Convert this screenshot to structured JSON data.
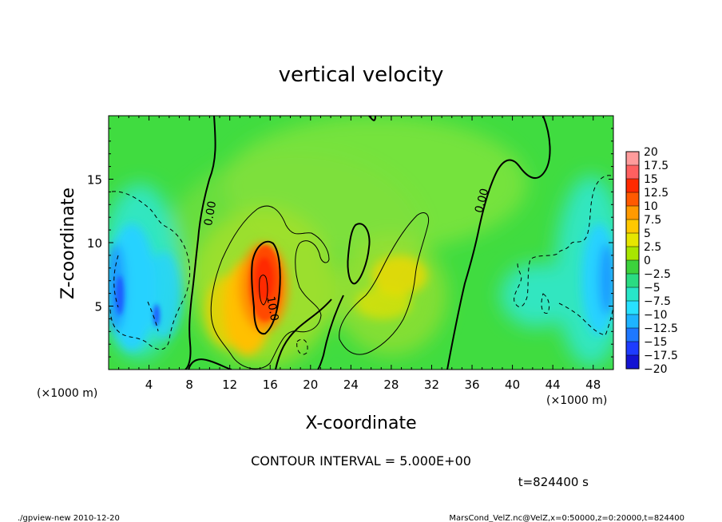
{
  "chart_data": {
    "type": "heatmap",
    "title": "vertical velocity",
    "xlabel": "X-coordinate",
    "ylabel": "Z-coordinate",
    "x_unit_label": "(×1000 m)",
    "xlim": [
      0,
      50
    ],
    "ylim": [
      0,
      20
    ],
    "x_ticks": [
      4,
      8,
      12,
      16,
      20,
      24,
      28,
      32,
      36,
      40,
      44,
      48
    ],
    "y_ticks": [
      5,
      10,
      15
    ],
    "colorbar": {
      "levels": [
        20,
        17.5,
        15,
        12.5,
        10,
        7.5,
        5,
        2.5,
        0,
        -2.5,
        -5,
        -7.5,
        -10,
        -12.5,
        -15,
        -17.5,
        -20
      ],
      "labels": [
        "20",
        "17.5",
        "15",
        "12.5",
        "10",
        "7.5",
        "5",
        "2.5",
        "0",
        "−2.5",
        "−5",
        "−7.5",
        "−10",
        "−12.5",
        "−15",
        "−17.5",
        "−20"
      ],
      "colors": [
        "#ff9c9c",
        "#ff6060",
        "#ff2a00",
        "#ff5a00",
        "#ff9a00",
        "#ffc800",
        "#e6e600",
        "#a8e600",
        "#3cd23c",
        "#2adc82",
        "#28e6c8",
        "#28e1ff",
        "#1eb4ff",
        "#1e78ff",
        "#1e3cff",
        "#1414d2",
        "#7814b4"
      ]
    },
    "contour_labels": [
      {
        "text": "0.00",
        "x": 10.1,
        "y": 12.3,
        "angle": -80
      },
      {
        "text": "0.00",
        "x": 37.0,
        "y": 13.3,
        "angle": -75
      },
      {
        "text": "10.0",
        "x": 16.2,
        "y": 4.8,
        "angle": 80
      }
    ],
    "contour_interval_text": "CONTOUR INTERVAL = 5.000E+00",
    "time_text": "t=824400 s"
  },
  "footer": {
    "left": "./gpview-new   2010-12-20",
    "right": "MarsCond_VelZ.nc@VelZ,x=0:50000,z=0:20000,t=824400"
  }
}
